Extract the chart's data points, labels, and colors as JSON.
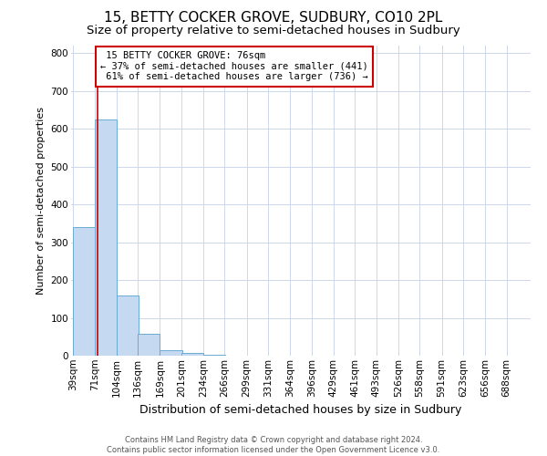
{
  "title": "15, BETTY COCKER GROVE, SUDBURY, CO10 2PL",
  "subtitle": "Size of property relative to semi-detached houses in Sudbury",
  "xlabel": "Distribution of semi-detached houses by size in Sudbury",
  "ylabel": "Number of semi-detached properties",
  "bin_labels": [
    "39sqm",
    "71sqm",
    "104sqm",
    "136sqm",
    "169sqm",
    "201sqm",
    "234sqm",
    "266sqm",
    "299sqm",
    "331sqm",
    "364sqm",
    "396sqm",
    "429sqm",
    "461sqm",
    "493sqm",
    "526sqm",
    "558sqm",
    "591sqm",
    "623sqm",
    "656sqm",
    "688sqm"
  ],
  "bar_values": [
    340,
    625,
    160,
    58,
    15,
    8,
    2,
    0,
    0,
    0,
    0,
    0,
    0,
    0,
    0,
    0,
    0,
    0,
    0,
    0,
    0
  ],
  "bar_color": "#c5d9f0",
  "bar_edge_color": "#6aabd2",
  "grid_color": "#ccd8ea",
  "property_sqm": 76,
  "property_label": "15 BETTY COCKER GROVE: 76sqm",
  "pct_smaller": 37,
  "count_smaller": 441,
  "pct_larger": 61,
  "count_larger": 736,
  "vline_color": "#cc0000",
  "annotation_box_color": "#cc0000",
  "ylim": [
    0,
    820
  ],
  "yticks": [
    0,
    100,
    200,
    300,
    400,
    500,
    600,
    700,
    800
  ],
  "bin_width": 33,
  "bin_starts": [
    39,
    71,
    104,
    136,
    169,
    201,
    234,
    266,
    299,
    331,
    364,
    396,
    429,
    461,
    493,
    526,
    558,
    591,
    623,
    656,
    688
  ],
  "footer_line1": "Contains HM Land Registry data © Crown copyright and database right 2024.",
  "footer_line2": "Contains public sector information licensed under the Open Government Licence v3.0.",
  "title_fontsize": 11,
  "subtitle_fontsize": 9.5,
  "xlabel_fontsize": 9,
  "ylabel_fontsize": 8,
  "tick_fontsize": 7.5,
  "annot_fontsize": 7.5,
  "footer_fontsize": 6
}
